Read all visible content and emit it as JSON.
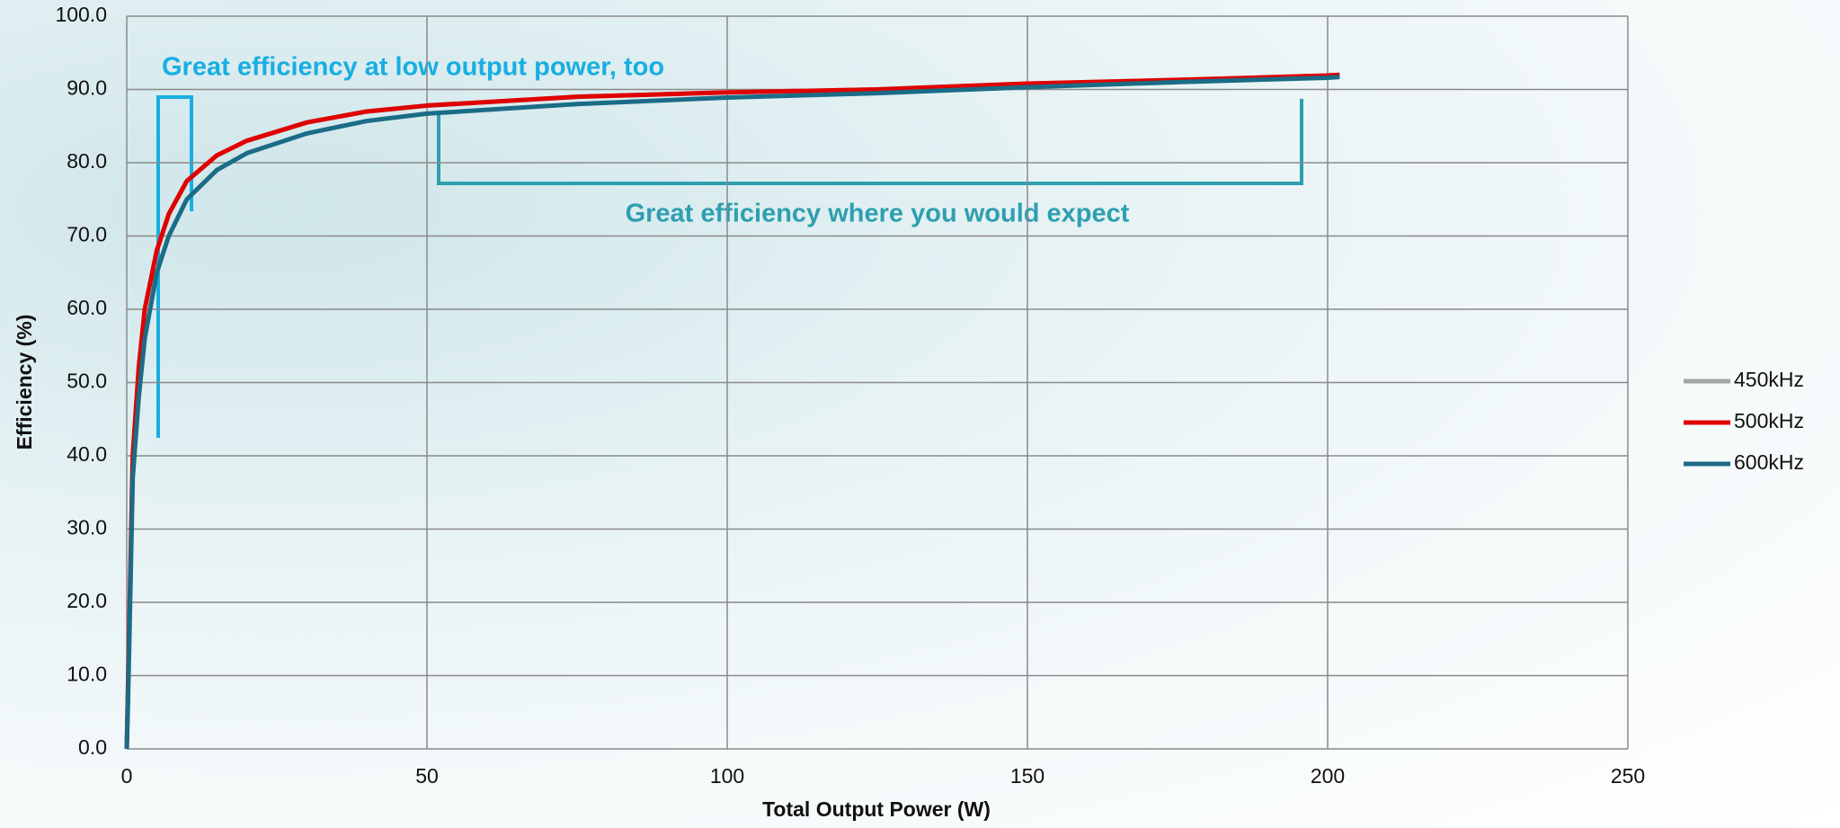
{
  "chart_data": {
    "type": "line",
    "xlabel": "Total Output Power (W)",
    "ylabel": "Efficiency (%)",
    "annotations": [
      "Great efficiency at low output power, too",
      "Great efficiency where you would expect"
    ],
    "x": [
      0,
      0.2,
      1,
      2,
      3,
      5,
      7,
      10,
      15,
      20,
      30,
      40,
      50,
      75,
      100,
      125,
      150,
      175,
      200,
      202
    ],
    "series": [
      {
        "name": "450kHz",
        "color": "#a6a6a6",
        "values": [
          0,
          8,
          40,
          52,
          60,
          68,
          73,
          77.5,
          81,
          83,
          85.5,
          87,
          87.8,
          89,
          89.6,
          90,
          90.8,
          91.3,
          91.9,
          92
        ]
      },
      {
        "name": "500kHz",
        "color": "#e00000",
        "values": [
          0,
          8,
          40,
          52,
          60,
          68,
          73,
          77.5,
          81,
          83,
          85.5,
          87,
          87.8,
          89,
          89.6,
          90,
          90.8,
          91.3,
          91.9,
          92
        ]
      },
      {
        "name": "600kHz",
        "color": "#1b6c86",
        "values": [
          0,
          6,
          37,
          48,
          56,
          65,
          70,
          75,
          79,
          81.3,
          84,
          85.7,
          86.7,
          88,
          88.9,
          89.5,
          90.3,
          91,
          91.6,
          91.7
        ]
      }
    ],
    "xlim": [
      0,
      250
    ],
    "xticks": [
      0,
      50,
      100,
      150,
      200,
      250
    ],
    "ylim": [
      0,
      100
    ],
    "yticks": [
      {
        "value": 0,
        "label": "0.0"
      },
      {
        "value": 10,
        "label": "10.0"
      },
      {
        "value": 20,
        "label": "20.0"
      },
      {
        "value": 30,
        "label": "30.0"
      },
      {
        "value": 40,
        "label": "40.0"
      },
      {
        "value": 50,
        "label": "50.0"
      },
      {
        "value": 60,
        "label": "60.0"
      },
      {
        "value": 70,
        "label": "70.0"
      },
      {
        "value": 80,
        "label": "80.0"
      },
      {
        "value": 90,
        "label": "90.0"
      },
      {
        "value": 100,
        "label": "100.0"
      }
    ],
    "grid": true,
    "legend": "right"
  }
}
